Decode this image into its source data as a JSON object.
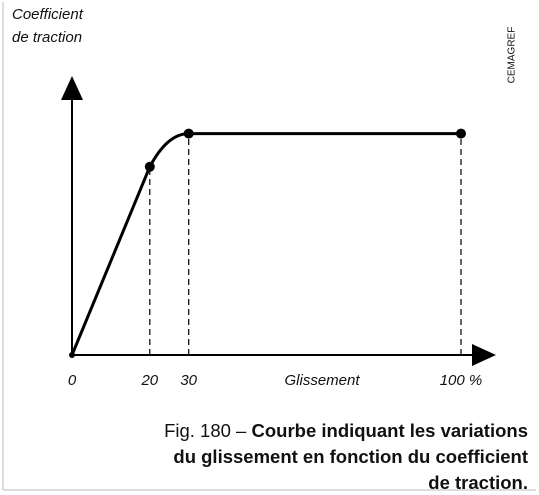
{
  "chart_data": {
    "type": "line",
    "ylabel": [
      "Coefficient",
      "de traction"
    ],
    "xlabel": "Glissement",
    "credit": "CEMAGREF",
    "caption": {
      "label": "Fig. 180 –",
      "lines": [
        "Courbe indiquant les variations",
        "du glissement en fonction du coefficient",
        "de traction."
      ]
    },
    "x": [
      0,
      20,
      30,
      100
    ],
    "series": [
      {
        "name": "Coefficient de traction",
        "color": "#000000",
        "values": [
          0,
          0.85,
          1,
          1
        ]
      }
    ],
    "xlim": [
      0,
      109
    ],
    "ylim": [
      0,
      1.26
    ],
    "xticks": [
      0,
      20,
      30,
      {
        "value": 100,
        "label": "100 %"
      }
    ]
  }
}
